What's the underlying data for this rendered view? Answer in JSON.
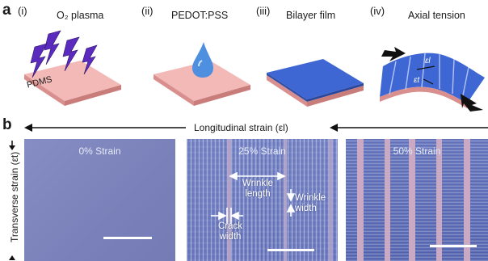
{
  "panel_a": {
    "letter": "a",
    "steps": [
      {
        "num": "(i)",
        "title": "O₂ plasma"
      },
      {
        "num": "(ii)",
        "title": "PEDOT:PSS"
      },
      {
        "num": "(iii)",
        "title": "Bilayer film"
      },
      {
        "num": "(iv)",
        "title": "Axial tension"
      }
    ],
    "substrate_label": "PDMS",
    "strain_symbols": {
      "longitudinal": "εl",
      "transverse": "εt"
    }
  },
  "panel_b": {
    "letter": "b",
    "longitudinal_label": "Longitudinal strain (εl)",
    "transverse_label": "Transverse strain (εt)",
    "images": [
      {
        "strain_label": "0% Strain"
      },
      {
        "strain_label": "25% Strain",
        "annotations": {
          "wrinkle_length": "Wrinkle length",
          "wrinkle_width": "Wrinkle width",
          "crack_width": "Crack width"
        }
      },
      {
        "strain_label": "50% Strain"
      }
    ]
  },
  "colors": {
    "substrate_top": "#f2b9b7",
    "substrate_side": "#d98f8d",
    "film_blue": "#3f67d3",
    "plasma_purple": "#5b2bbf",
    "image_bg": "#7f86bf"
  }
}
